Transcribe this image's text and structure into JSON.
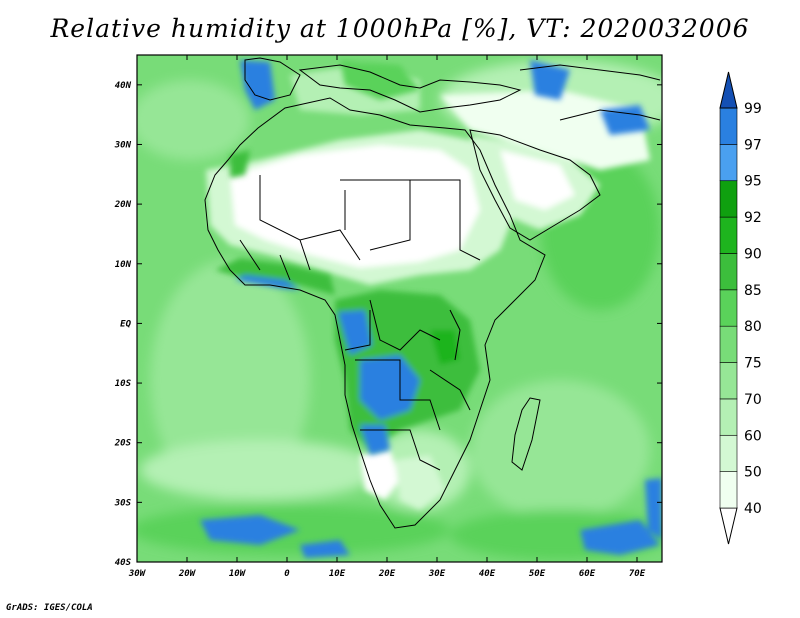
{
  "title": "Relative humidity at 1000hPa [%], VT: 2020032006",
  "credit": "GrADS: IGES/COLA",
  "map": {
    "lon_range": [
      -30,
      75
    ],
    "lat_range": [
      -40,
      45
    ],
    "lon_ticks": [
      "30W",
      "20W",
      "10W",
      "0",
      "10E",
      "20E",
      "30E",
      "40E",
      "50E",
      "60E",
      "70E"
    ],
    "lat_ticks": [
      "40S",
      "30S",
      "20S",
      "10S",
      "EQ",
      "10N",
      "20N",
      "30N",
      "40N"
    ],
    "lon_tick_values": [
      -30,
      -20,
      -10,
      0,
      10,
      20,
      30,
      40,
      50,
      60,
      70
    ],
    "lat_tick_values": [
      -40,
      -30,
      -20,
      -10,
      0,
      10,
      20,
      30,
      40
    ]
  },
  "colorbar": {
    "levels": [
      "40",
      "50",
      "60",
      "70",
      "75",
      "80",
      "85",
      "90",
      "92",
      "95",
      "97",
      "99"
    ],
    "colors": [
      "#f0fff0",
      "#d3f8d3",
      "#b4f0b4",
      "#96e696",
      "#78dc78",
      "#5ad25a",
      "#3cbe3c",
      "#1eb41e",
      "#0fa00f",
      "#4aa0f0",
      "#2a80e0",
      "#1e60c8",
      "#1450b4"
    ]
  }
}
